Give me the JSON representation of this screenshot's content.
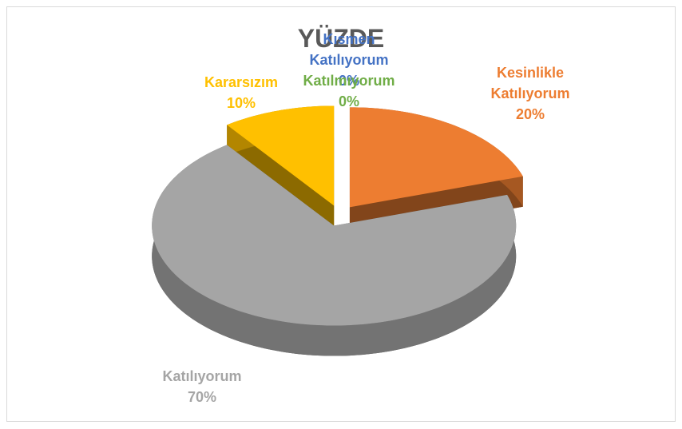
{
  "chart_data": {
    "type": "pie",
    "title": "YÜZDE",
    "categories": [
      "Kesinlikle Katılıyorum",
      "Katılıyorum",
      "Kararsızım",
      "Kısmen Katılıyorum",
      "Katılmıyorum"
    ],
    "values": [
      20,
      70,
      10,
      0,
      0
    ],
    "value_labels": [
      "20%",
      "70%",
      "10%",
      "0%",
      "0%"
    ],
    "colors": [
      "#ed7d31",
      "#a5a5a5",
      "#ffc000",
      "#4472c4",
      "#70ad47"
    ]
  }
}
